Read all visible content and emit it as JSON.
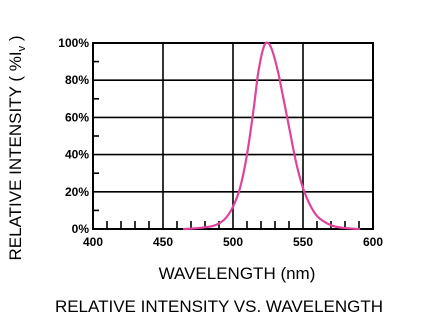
{
  "chart_data": {
    "type": "line",
    "title": "RELATIVE INTENSITY VS. WAVELENGTH",
    "xlabel": "WAVELENGTH (nm)",
    "ylabel_main": "RELATIVE INTENSITY ( %I",
    "ylabel_sub": "v",
    "ylabel_end": " )",
    "xlim": [
      400,
      600
    ],
    "ylim": [
      0,
      100
    ],
    "x_ticks": [
      400,
      450,
      500,
      550,
      600
    ],
    "x_tick_labels": [
      "400",
      "450",
      "500",
      "550",
      "600"
    ],
    "y_ticks": [
      0,
      20,
      40,
      60,
      80,
      100
    ],
    "y_tick_labels": [
      "0%",
      "20%",
      "40%",
      "60%",
      "80%",
      "100%"
    ],
    "grid": true,
    "series": [
      {
        "color": "#e0449a",
        "x": [
          465,
          475,
          485,
          490,
          495,
          500,
          505,
          510,
          515,
          518,
          522,
          525,
          528,
          532,
          535,
          540,
          545,
          550,
          555,
          560,
          565,
          570,
          575,
          580,
          590
        ],
        "y": [
          0,
          0.5,
          1.5,
          3,
          6,
          12,
          22,
          40,
          66,
          84,
          98,
          100,
          96,
          85,
          74,
          55,
          36,
          22,
          13,
          7,
          4,
          2,
          1,
          0.5,
          0
        ]
      }
    ]
  }
}
